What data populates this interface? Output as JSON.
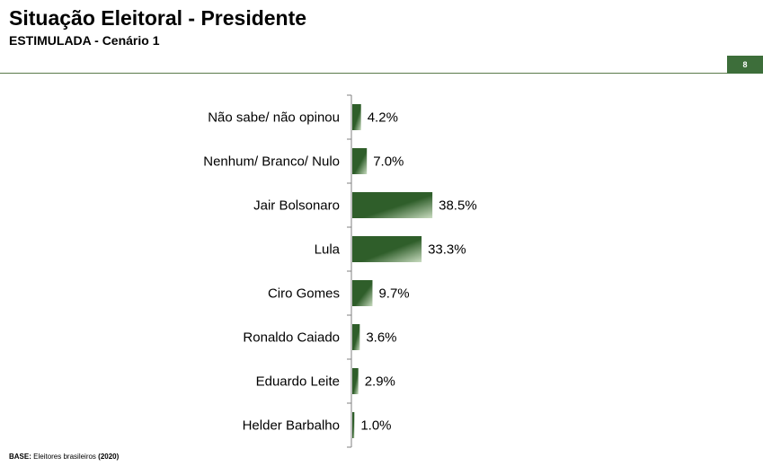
{
  "header": {
    "title": "Situação Eleitoral - Presidente",
    "subtitle": "ESTIMULADA - Cenário 1",
    "page_number": "8"
  },
  "footer": {
    "base_label": "BASE:",
    "base_text": "Eleitores brasileiros",
    "base_year": "(2020)"
  },
  "colors": {
    "bar_dark": "#2f5e2a",
    "bar_light": "#c9dcc0",
    "accent": "#3d6e3a",
    "axis": "#808080"
  },
  "chart_data": {
    "type": "bar",
    "orientation": "horizontal",
    "categories": [
      "Não sabe/ não opinou",
      "Nenhum/ Branco/ Nulo",
      "Jair Bolsonaro",
      "Lula",
      "Ciro Gomes",
      "Ronaldo Caiado",
      "Eduardo Leite",
      "Helder Barbalho"
    ],
    "values": [
      4.2,
      7.0,
      38.5,
      33.3,
      9.7,
      3.6,
      2.9,
      1.0
    ],
    "value_labels": [
      "4.2%",
      "7.0%",
      "38.5%",
      "33.3%",
      "9.7%",
      "3.6%",
      "2.9%",
      "1.0%"
    ],
    "unit": "%",
    "xlim": [
      0,
      100
    ],
    "grid": false,
    "legend": "none"
  }
}
